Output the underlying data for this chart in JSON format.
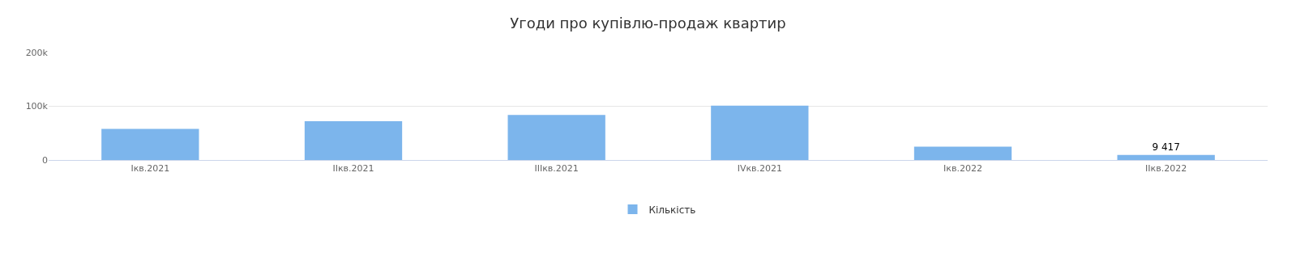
{
  "chart_data": {
    "type": "bar",
    "title": "Угоди про купівлю-продаж квартир",
    "categories": [
      "Iкв.2021",
      "IIкв.2021",
      "IIIкв.2021",
      "IVкв.2021",
      "Iкв.2022",
      "IIкв.2022"
    ],
    "series": [
      {
        "name": "Кількість",
        "color": "#7cb5ec",
        "values": [
          58000,
          72000,
          84000,
          101000,
          25000,
          9417
        ],
        "value_labels": [
          null,
          null,
          null,
          null,
          null,
          "9 417"
        ]
      }
    ],
    "ylim": [
      0,
      200000
    ],
    "yticks": [
      {
        "value": 0,
        "label": "0"
      },
      {
        "value": 100000,
        "label": "100k"
      },
      {
        "value": 200000,
        "label": "200k"
      }
    ],
    "grid": "y",
    "legend": "bottom"
  }
}
